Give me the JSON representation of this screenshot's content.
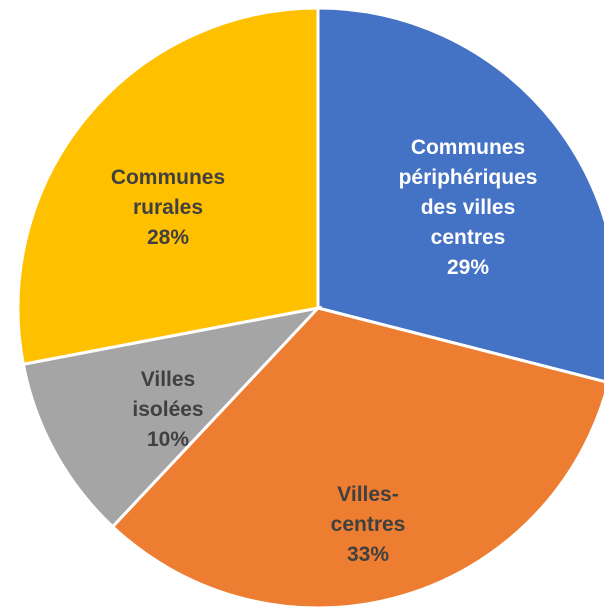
{
  "chart_data": {
    "type": "pie",
    "categories": [
      "Communes périphériques des villes centres",
      "Villes-centres",
      "Villes isolées",
      "Communes rurales"
    ],
    "values": [
      29,
      33,
      10,
      28
    ],
    "value_labels": [
      "29%",
      "33%",
      "10%",
      "28%"
    ],
    "colors": [
      "#4472c4",
      "#ed7d31",
      "#a5a5a5",
      "#ffc000"
    ],
    "label_colors": [
      "#ffffff",
      "#404040",
      "#404040",
      "#404040"
    ]
  }
}
